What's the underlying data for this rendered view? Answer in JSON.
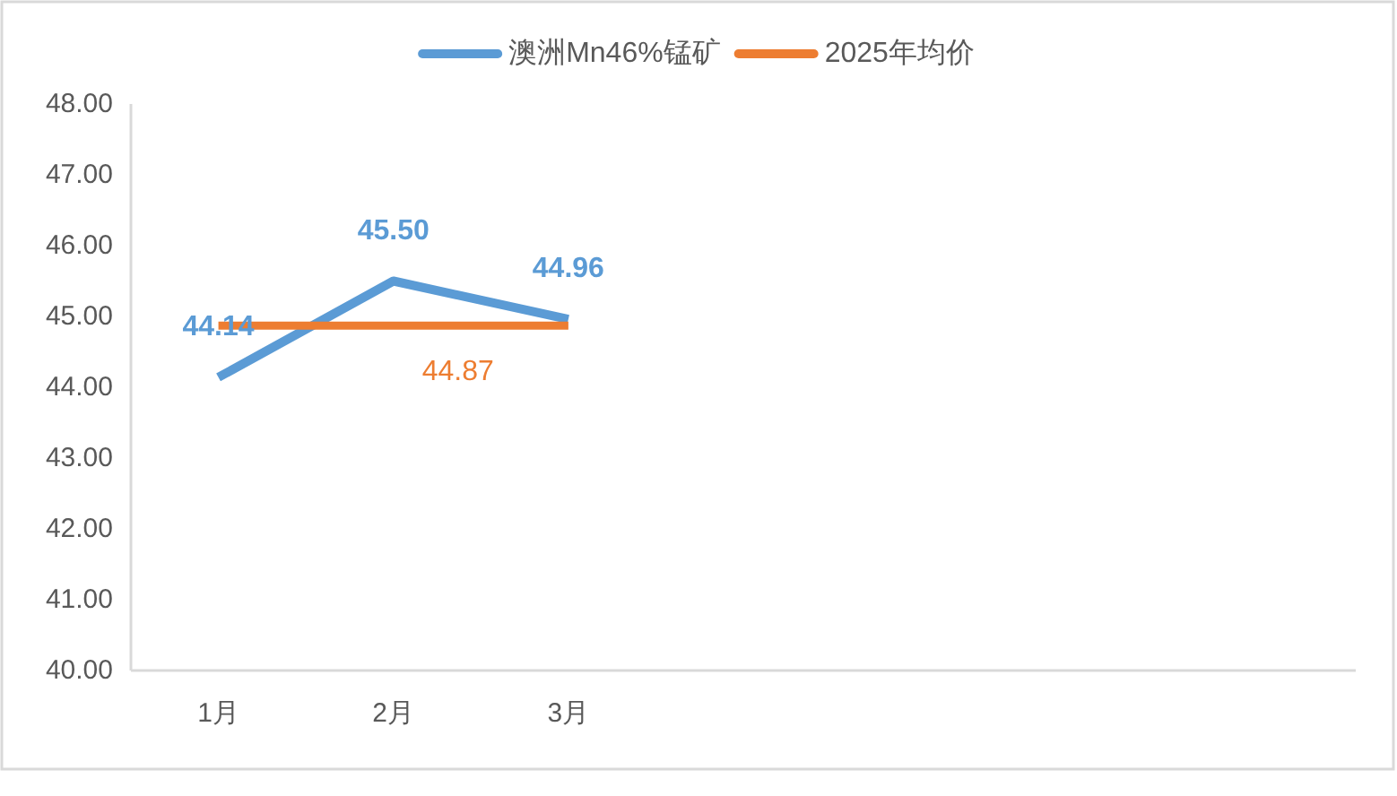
{
  "chart_data": {
    "type": "line",
    "categories": [
      "1月",
      "2月",
      "3月",
      null,
      null,
      null,
      null
    ],
    "series": [
      {
        "name": "澳洲Mn46%锰矿",
        "color": "#5b9bd5",
        "values": [
          44.14,
          45.5,
          44.96,
          null,
          null,
          null,
          null
        ],
        "value_labels": [
          "44.14",
          "45.50",
          "44.96",
          null,
          null,
          null,
          null
        ]
      },
      {
        "name": "2025年均价",
        "color": "#ed7d31",
        "values": [
          44.87,
          44.87,
          44.87,
          null,
          null,
          null,
          null
        ],
        "value_labels": [
          null,
          "44.87",
          null,
          null,
          null,
          null,
          null
        ]
      }
    ],
    "ylim": [
      40,
      48
    ],
    "yticks": [
      {
        "value": 40,
        "label": "40.00"
      },
      {
        "value": 41,
        "label": "41.00"
      },
      {
        "value": 42,
        "label": "42.00"
      },
      {
        "value": 43,
        "label": "43.00"
      },
      {
        "value": 44,
        "label": "44.00"
      },
      {
        "value": 45,
        "label": "45.00"
      },
      {
        "value": 46,
        "label": "46.00"
      },
      {
        "value": 47,
        "label": "47.00"
      },
      {
        "value": 48,
        "label": "48.00"
      }
    ],
    "legend": "top"
  }
}
